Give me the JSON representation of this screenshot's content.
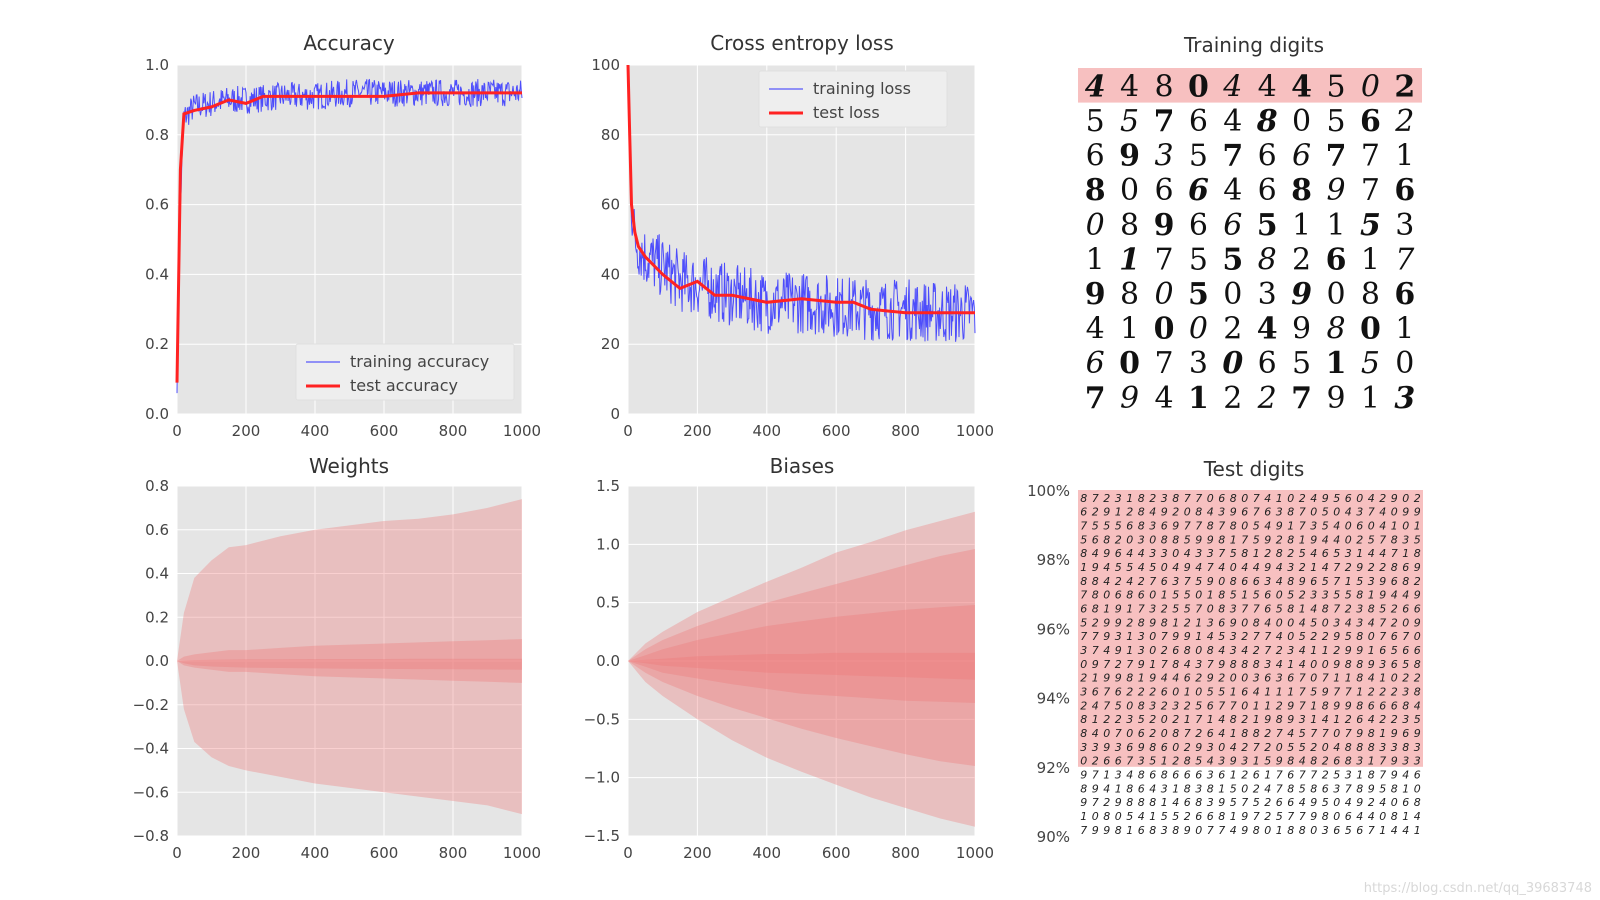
{
  "figure": {
    "watermark": "https://blog.csdn.net/qq_39683748"
  },
  "colors": {
    "plot_bg": "#e5e5e5",
    "grid": "#ffffff",
    "train": "#3333ff",
    "test": "#ff2222",
    "band": "#ee7777",
    "digit_hl": "#f7c0c0"
  },
  "chart_data": [
    {
      "id": "accuracy",
      "type": "line",
      "title": "Accuracy",
      "xlim": [
        0,
        1000
      ],
      "ylim": [
        0.0,
        1.0
      ],
      "xticks": [
        "0",
        "200",
        "400",
        "600",
        "800",
        "1000"
      ],
      "yticks": [
        "0.0",
        "0.2",
        "0.4",
        "0.6",
        "0.8",
        "1.0"
      ],
      "legend": {
        "position": "lower-right"
      },
      "series": [
        {
          "name": "training accuracy",
          "style": "noisy",
          "x": [
            0,
            10,
            20,
            50,
            100,
            150,
            200,
            300,
            400,
            500,
            600,
            700,
            800,
            900,
            1000
          ],
          "y": [
            0.1,
            0.6,
            0.85,
            0.88,
            0.89,
            0.9,
            0.9,
            0.91,
            0.91,
            0.92,
            0.92,
            0.92,
            0.92,
            0.92,
            0.92
          ],
          "noise": 0.04
        },
        {
          "name": "test accuracy",
          "style": "smooth",
          "x": [
            0,
            10,
            20,
            50,
            100,
            150,
            200,
            250,
            300,
            400,
            500,
            600,
            700,
            800,
            900,
            1000
          ],
          "y": [
            0.09,
            0.7,
            0.86,
            0.87,
            0.88,
            0.9,
            0.89,
            0.91,
            0.91,
            0.91,
            0.91,
            0.91,
            0.92,
            0.92,
            0.92,
            0.92
          ]
        }
      ]
    },
    {
      "id": "loss",
      "type": "line",
      "title": "Cross entropy loss",
      "xlim": [
        0,
        1000
      ],
      "ylim": [
        0,
        100
      ],
      "xticks": [
        "0",
        "200",
        "400",
        "600",
        "800",
        "1000"
      ],
      "yticks": [
        "0",
        "20",
        "40",
        "60",
        "80",
        "100"
      ],
      "legend": {
        "position": "upper-right"
      },
      "series": [
        {
          "name": "training loss",
          "style": "noisy",
          "x": [
            0,
            10,
            20,
            50,
            100,
            150,
            200,
            300,
            400,
            500,
            600,
            700,
            800,
            900,
            1000
          ],
          "y": [
            100,
            60,
            50,
            45,
            42,
            38,
            37,
            34,
            32,
            32,
            31,
            30,
            30,
            29,
            29
          ],
          "noise": 9
        },
        {
          "name": "test loss",
          "style": "smooth",
          "x": [
            0,
            5,
            10,
            20,
            30,
            50,
            100,
            150,
            200,
            250,
            300,
            400,
            500,
            600,
            650,
            700,
            800,
            900,
            1000
          ],
          "y": [
            100,
            80,
            60,
            52,
            48,
            45,
            40,
            36,
            38,
            34,
            34,
            32,
            33,
            32,
            32,
            30,
            29,
            29,
            29
          ]
        }
      ]
    },
    {
      "id": "weights",
      "type": "area",
      "title": "Weights",
      "xlim": [
        0,
        1000
      ],
      "ylim": [
        -0.8,
        0.8
      ],
      "xticks": [
        "0",
        "200",
        "400",
        "600",
        "800",
        "1000"
      ],
      "yticks": [
        "−0.8",
        "−0.6",
        "−0.4",
        "−0.2",
        "0.0",
        "0.2",
        "0.4",
        "0.6",
        "0.8"
      ],
      "x": [
        0,
        20,
        50,
        100,
        150,
        200,
        300,
        400,
        500,
        600,
        700,
        800,
        900,
        1000
      ],
      "bands": [
        {
          "upper": [
            0,
            0.22,
            0.38,
            0.46,
            0.52,
            0.53,
            0.57,
            0.6,
            0.62,
            0.64,
            0.65,
            0.67,
            0.7,
            0.74
          ],
          "lower": [
            0,
            -0.22,
            -0.37,
            -0.44,
            -0.48,
            -0.5,
            -0.53,
            -0.56,
            -0.58,
            -0.6,
            -0.62,
            -0.64,
            -0.66,
            -0.7
          ]
        },
        {
          "upper": [
            0,
            0.02,
            0.03,
            0.04,
            0.05,
            0.05,
            0.06,
            0.07,
            0.075,
            0.08,
            0.085,
            0.09,
            0.095,
            0.1
          ],
          "lower": [
            0,
            -0.02,
            -0.03,
            -0.04,
            -0.05,
            -0.05,
            -0.06,
            -0.07,
            -0.075,
            -0.08,
            -0.085,
            -0.09,
            -0.095,
            -0.1
          ]
        },
        {
          "upper": [
            0,
            0.002,
            0.004,
            0.006,
            0.007,
            0.008,
            0.008,
            0.009,
            0.009,
            0.009,
            0.01,
            0.01,
            0.01,
            0.01
          ],
          "lower": [
            0,
            -0.01,
            -0.02,
            -0.025,
            -0.028,
            -0.03,
            -0.032,
            -0.034,
            -0.035,
            -0.036,
            -0.037,
            -0.038,
            -0.039,
            -0.04
          ]
        }
      ]
    },
    {
      "id": "biases",
      "type": "area",
      "title": "Biases",
      "xlim": [
        0,
        1000
      ],
      "ylim": [
        -1.5,
        1.5
      ],
      "xticks": [
        "0",
        "200",
        "400",
        "600",
        "800",
        "1000"
      ],
      "yticks": [
        "−1.5",
        "−1.0",
        "−0.5",
        "0.0",
        "0.5",
        "1.0",
        "1.5"
      ],
      "x": [
        0,
        50,
        100,
        200,
        300,
        400,
        500,
        600,
        700,
        800,
        900,
        1000
      ],
      "bands": [
        {
          "upper": [
            0,
            0.15,
            0.25,
            0.42,
            0.55,
            0.68,
            0.8,
            0.93,
            1.02,
            1.12,
            1.2,
            1.28
          ],
          "lower": [
            0,
            -0.18,
            -0.3,
            -0.5,
            -0.68,
            -0.83,
            -0.95,
            -1.06,
            -1.17,
            -1.26,
            -1.35,
            -1.42
          ]
        },
        {
          "upper": [
            0,
            0.1,
            0.18,
            0.3,
            0.4,
            0.5,
            0.58,
            0.66,
            0.74,
            0.82,
            0.9,
            0.96
          ],
          "lower": [
            0,
            -0.1,
            -0.18,
            -0.3,
            -0.4,
            -0.49,
            -0.58,
            -0.66,
            -0.73,
            -0.8,
            -0.86,
            -0.9
          ]
        },
        {
          "upper": [
            0,
            0.05,
            0.1,
            0.18,
            0.24,
            0.3,
            0.34,
            0.38,
            0.41,
            0.44,
            0.46,
            0.48
          ],
          "lower": [
            0,
            -0.05,
            -0.1,
            -0.15,
            -0.2,
            -0.24,
            -0.28,
            -0.3,
            -0.32,
            -0.34,
            -0.35,
            -0.36
          ]
        },
        {
          "upper": [
            0,
            0.01,
            0.02,
            0.04,
            0.05,
            0.06,
            0.06,
            0.07,
            0.07,
            0.07,
            0.07,
            0.07
          ],
          "lower": [
            0,
            -0.02,
            -0.04,
            -0.06,
            -0.08,
            -0.1,
            -0.11,
            -0.12,
            -0.13,
            -0.14,
            -0.15,
            -0.16
          ]
        }
      ]
    }
  ],
  "digits": {
    "training": {
      "title": "Training digits",
      "rows": [
        [
          "4",
          "4",
          "8",
          "0",
          "4",
          "4",
          "4",
          "5",
          "0",
          "2"
        ],
        [
          "5",
          "5",
          "7",
          "6",
          "4",
          "8",
          "0",
          "5",
          "6",
          "2"
        ],
        [
          "6",
          "9",
          "3",
          "5",
          "7",
          "6",
          "6",
          "7",
          "7",
          "1"
        ],
        [
          "8",
          "0",
          "6",
          "6",
          "4",
          "6",
          "8",
          "9",
          "7",
          "6"
        ],
        [
          "0",
          "8",
          "9",
          "6",
          "6",
          "5",
          "1",
          "1",
          "5",
          "3"
        ],
        [
          "1",
          "1",
          "7",
          "5",
          "5",
          "8",
          "2",
          "6",
          "1",
          "7"
        ],
        [
          "9",
          "8",
          "0",
          "5",
          "0",
          "3",
          "9",
          "0",
          "8",
          "6"
        ],
        [
          "4",
          "1",
          "0",
          "0",
          "2",
          "4",
          "9",
          "8",
          "0",
          "1"
        ],
        [
          "6",
          "0",
          "7",
          "3",
          "0",
          "6",
          "5",
          "1",
          "5",
          "0"
        ],
        [
          "7",
          "9",
          "4",
          "1",
          "2",
          "2",
          "7",
          "9",
          "1",
          "3"
        ]
      ],
      "highlighted_rows": 1
    },
    "test": {
      "title": "Test digits",
      "yticks": [
        "90%",
        "92%",
        "94%",
        "96%",
        "98%",
        "100%"
      ],
      "ylim": [
        90,
        100
      ],
      "highlight_from": 92,
      "cols": 30,
      "rows": 25
    }
  }
}
